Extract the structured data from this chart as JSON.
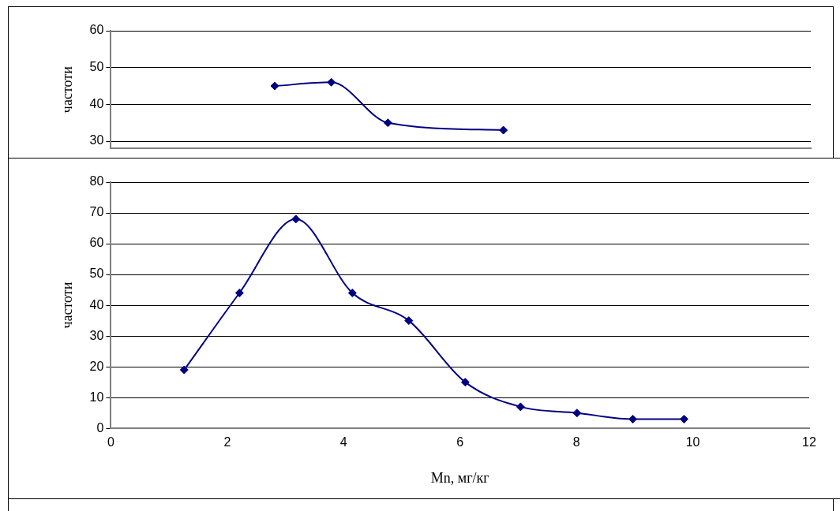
{
  "chart_data": [
    {
      "type": "line",
      "ylabel": "частоти",
      "x": [
        2.81,
        3.78,
        4.75,
        6.73
      ],
      "xlim": [
        0,
        12
      ],
      "ylim": [
        28,
        60
      ],
      "yticks": [
        30,
        40,
        50,
        60
      ],
      "tick_labels": "y",
      "grid": "y",
      "marker": "diamond",
      "legend": false,
      "series": [
        {
          "color": "#000080",
          "values": [
            45,
            46,
            35,
            33
          ]
        }
      ]
    },
    {
      "type": "line",
      "xlabel": "Mn, мг/кг",
      "ylabel": "частоти",
      "x": [
        1.26,
        2.21,
        3.18,
        4.15,
        5.12,
        6.09,
        7.04,
        8.01,
        8.97,
        9.85
      ],
      "xlim": [
        0,
        12
      ],
      "xticks": [
        0,
        2,
        4,
        6,
        8,
        10,
        12
      ],
      "ylim": [
        0,
        80
      ],
      "yticks": [
        0,
        10,
        20,
        30,
        40,
        50,
        60,
        70,
        80
      ],
      "grid": "y",
      "marker": "diamond",
      "legend": false,
      "series": [
        {
          "color": "#000080",
          "values": [
            19,
            44,
            68,
            44,
            35,
            15,
            7,
            5,
            3,
            3
          ]
        }
      ]
    }
  ]
}
